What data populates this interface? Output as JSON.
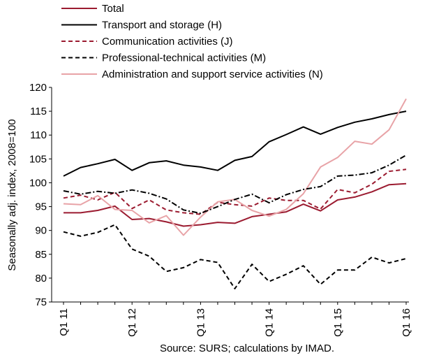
{
  "chart_data": {
    "type": "line",
    "ylabel": "Seasonally adj. index, 2008=100",
    "source": "Source: SURS; calculations by IMAD.",
    "ylim": [
      75,
      120
    ],
    "yticks": [
      75,
      80,
      85,
      90,
      95,
      100,
      105,
      110,
      115,
      120
    ],
    "n_periods": 21,
    "x_labels": [
      {
        "label": "Q1 11",
        "index": 0
      },
      {
        "label": "Q1 12",
        "index": 4
      },
      {
        "label": "Q1 13",
        "index": 8
      },
      {
        "label": "Q1 14",
        "index": 12
      },
      {
        "label": "Q1 15",
        "index": 16
      },
      {
        "label": "Q1 16",
        "index": 20
      }
    ],
    "grid": false,
    "legend_position": "top-left",
    "series": [
      {
        "name": "Total",
        "color": "#9b1b30",
        "dash": "solid",
        "values": [
          93.7,
          93.7,
          94.2,
          95.1,
          92.3,
          92.5,
          91.8,
          90.9,
          91.2,
          91.7,
          91.5,
          92.9,
          93.4,
          93.9,
          95.5,
          94.1,
          96.4,
          97.0,
          98.1,
          99.6,
          99.8
        ]
      },
      {
        "name": "Transport and storage (H)",
        "color": "#000000",
        "dash": "solid",
        "values": [
          101.4,
          103.2,
          104.0,
          104.9,
          102.6,
          104.2,
          104.6,
          103.7,
          103.3,
          102.6,
          104.7,
          105.5,
          108.6,
          110.1,
          111.7,
          110.2,
          111.6,
          112.7,
          113.4,
          114.3,
          115.0
        ]
      },
      {
        "name": "Communication activities (J)",
        "color": "#9b1b30",
        "dash": "dashed",
        "values": [
          96.8,
          97.4,
          96.4,
          98.0,
          94.6,
          96.4,
          94.3,
          93.7,
          93.4,
          95.9,
          95.4,
          95.1,
          96.8,
          96.3,
          96.3,
          94.5,
          98.6,
          97.9,
          99.7,
          102.4,
          102.8
        ]
      },
      {
        "name": "Professional-technical activities (M)",
        "color": "#000000",
        "dash": "dashed",
        "values": [
          89.7,
          88.8,
          89.6,
          91.2,
          86.1,
          84.6,
          81.4,
          82.2,
          83.9,
          83.3,
          77.8,
          82.9,
          79.3,
          80.8,
          82.6,
          78.7,
          81.7,
          81.7,
          84.4,
          83.2,
          84.1
        ]
      },
      {
        "name": "Administration and support service activities (N)",
        "color": "#e8a3a7",
        "dash": "solid",
        "values": [
          95.6,
          95.4,
          97.3,
          94.4,
          94.2,
          91.6,
          93.1,
          89.0,
          92.8,
          96.0,
          96.5,
          94.2,
          93.0,
          94.4,
          97.7,
          103.3,
          105.3,
          108.7,
          108.1,
          111.1,
          117.6
        ]
      },
      {
        "name": "",
        "color": "#000000",
        "dash": "dashdot",
        "values": [
          98.3,
          97.6,
          98.2,
          97.8,
          98.5,
          97.8,
          96.6,
          94.3,
          93.6,
          95.0,
          96.5,
          97.6,
          95.8,
          97.5,
          98.6,
          99.2,
          101.4,
          101.6,
          102.1,
          103.7,
          105.8
        ]
      }
    ]
  }
}
